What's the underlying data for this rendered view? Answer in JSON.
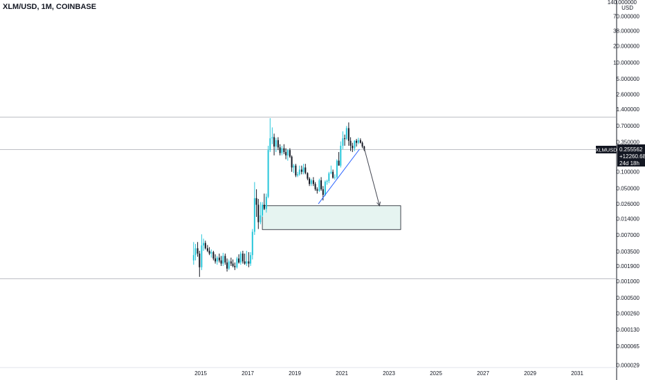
{
  "header": {
    "symbol_title": "XLM/USD, 1M, COINBASE"
  },
  "price_axis": {
    "currency": "USD",
    "top_label": "140.000000",
    "labels": [
      "70.000000",
      "38.000000",
      "20.000000",
      "10.000000",
      "5.000000",
      "2.600000",
      "1.400000",
      "0.700000",
      "0.350000",
      "0.100000",
      "0.050000",
      "0.026000",
      "0.014000",
      "0.007000",
      "0.003500",
      "0.001900",
      "0.001000",
      "0.000500",
      "0.000260",
      "0.000130",
      "0.000065",
      "0.000029"
    ]
  },
  "time_axis": {
    "labels": [
      "2015",
      "2017",
      "2019",
      "2021",
      "2023",
      "2025",
      "2027",
      "2029",
      "2031"
    ]
  },
  "price_tag": {
    "symbol": "XLMUSD",
    "price": "0.255562",
    "change": "+12260.68%",
    "countdown": "24d 18h",
    "color": "#131722"
  },
  "colors": {
    "up": "#26c6da",
    "down": "#131722",
    "trendline": "#2962ff",
    "box_fill": "#e6f4f1",
    "arrow": "#434651",
    "hline": "#9598a1"
  },
  "chart_data": {
    "type": "candlestick",
    "scale": "log",
    "interval": "1M",
    "horizontal_lines": [
      1.0,
      0.0011
    ],
    "candles": [
      {
        "t": 2014.7,
        "o": 0.0024,
        "h": 0.0052,
        "l": 0.002,
        "c": 0.003
      },
      {
        "t": 2014.78,
        "o": 0.003,
        "h": 0.0048,
        "l": 0.0024,
        "c": 0.004
      },
      {
        "t": 2014.87,
        "o": 0.004,
        "h": 0.0052,
        "l": 0.0028,
        "c": 0.0032
      },
      {
        "t": 2014.95,
        "o": 0.0032,
        "h": 0.0036,
        "l": 0.0012,
        "c": 0.0018
      },
      {
        "t": 2015.04,
        "o": 0.0018,
        "h": 0.0072,
        "l": 0.0016,
        "c": 0.0045
      },
      {
        "t": 2015.12,
        "o": 0.0045,
        "h": 0.006,
        "l": 0.0036,
        "c": 0.005
      },
      {
        "t": 2015.2,
        "o": 0.005,
        "h": 0.0055,
        "l": 0.0038,
        "c": 0.004
      },
      {
        "t": 2015.29,
        "o": 0.004,
        "h": 0.0046,
        "l": 0.0034,
        "c": 0.0036
      },
      {
        "t": 2015.37,
        "o": 0.0036,
        "h": 0.0042,
        "l": 0.003,
        "c": 0.0032
      },
      {
        "t": 2015.45,
        "o": 0.0032,
        "h": 0.0038,
        "l": 0.0027,
        "c": 0.0034
      },
      {
        "t": 2015.54,
        "o": 0.0034,
        "h": 0.0036,
        "l": 0.0024,
        "c": 0.0026
      },
      {
        "t": 2015.62,
        "o": 0.0026,
        "h": 0.0031,
        "l": 0.0021,
        "c": 0.0023
      },
      {
        "t": 2015.7,
        "o": 0.0023,
        "h": 0.0029,
        "l": 0.002,
        "c": 0.0027
      },
      {
        "t": 2015.79,
        "o": 0.0027,
        "h": 0.0032,
        "l": 0.0022,
        "c": 0.0024
      },
      {
        "t": 2015.87,
        "o": 0.0024,
        "h": 0.0029,
        "l": 0.0019,
        "c": 0.0021
      },
      {
        "t": 2015.95,
        "o": 0.0021,
        "h": 0.0033,
        "l": 0.0019,
        "c": 0.0029
      },
      {
        "t": 2016.04,
        "o": 0.0029,
        "h": 0.0032,
        "l": 0.002,
        "c": 0.0022
      },
      {
        "t": 2016.12,
        "o": 0.0022,
        "h": 0.0026,
        "l": 0.0015,
        "c": 0.0017
      },
      {
        "t": 2016.2,
        "o": 0.0017,
        "h": 0.0025,
        "l": 0.0016,
        "c": 0.0023
      },
      {
        "t": 2016.29,
        "o": 0.0023,
        "h": 0.0027,
        "l": 0.0019,
        "c": 0.0021
      },
      {
        "t": 2016.37,
        "o": 0.0021,
        "h": 0.0025,
        "l": 0.0018,
        "c": 0.0019
      },
      {
        "t": 2016.45,
        "o": 0.0019,
        "h": 0.0022,
        "l": 0.0016,
        "c": 0.0018
      },
      {
        "t": 2016.54,
        "o": 0.0018,
        "h": 0.0028,
        "l": 0.0017,
        "c": 0.0026
      },
      {
        "t": 2016.62,
        "o": 0.0026,
        "h": 0.0031,
        "l": 0.0021,
        "c": 0.0022
      },
      {
        "t": 2016.7,
        "o": 0.0022,
        "h": 0.0035,
        "l": 0.002,
        "c": 0.0032
      },
      {
        "t": 2016.79,
        "o": 0.0032,
        "h": 0.0036,
        "l": 0.0021,
        "c": 0.0023
      },
      {
        "t": 2016.87,
        "o": 0.0023,
        "h": 0.0032,
        "l": 0.002,
        "c": 0.0021
      },
      {
        "t": 2016.95,
        "o": 0.0021,
        "h": 0.0036,
        "l": 0.0019,
        "c": 0.0023
      },
      {
        "t": 2017.04,
        "o": 0.0023,
        "h": 0.0034,
        "l": 0.0018,
        "c": 0.0021
      },
      {
        "t": 2017.12,
        "o": 0.0021,
        "h": 0.0034,
        "l": 0.0019,
        "c": 0.003
      },
      {
        "t": 2017.2,
        "o": 0.003,
        "h": 0.009,
        "l": 0.0025,
        "c": 0.008
      },
      {
        "t": 2017.29,
        "o": 0.008,
        "h": 0.065,
        "l": 0.007,
        "c": 0.033
      },
      {
        "t": 2017.37,
        "o": 0.033,
        "h": 0.048,
        "l": 0.015,
        "c": 0.025
      },
      {
        "t": 2017.45,
        "o": 0.025,
        "h": 0.032,
        "l": 0.009,
        "c": 0.012
      },
      {
        "t": 2017.54,
        "o": 0.012,
        "h": 0.028,
        "l": 0.011,
        "c": 0.016
      },
      {
        "t": 2017.62,
        "o": 0.016,
        "h": 0.028,
        "l": 0.015,
        "c": 0.025
      },
      {
        "t": 2017.7,
        "o": 0.025,
        "h": 0.04,
        "l": 0.02,
        "c": 0.021
      },
      {
        "t": 2017.79,
        "o": 0.021,
        "h": 0.04,
        "l": 0.018,
        "c": 0.035
      },
      {
        "t": 2017.87,
        "o": 0.035,
        "h": 0.3,
        "l": 0.033,
        "c": 0.25
      },
      {
        "t": 2017.95,
        "o": 0.25,
        "h": 0.96,
        "l": 0.23,
        "c": 0.41
      },
      {
        "t": 2018.04,
        "o": 0.41,
        "h": 0.65,
        "l": 0.32,
        "c": 0.43
      },
      {
        "t": 2018.12,
        "o": 0.43,
        "h": 0.5,
        "l": 0.2,
        "c": 0.29
      },
      {
        "t": 2018.2,
        "o": 0.29,
        "h": 0.42,
        "l": 0.23,
        "c": 0.38
      },
      {
        "t": 2018.29,
        "o": 0.38,
        "h": 0.43,
        "l": 0.25,
        "c": 0.28
      },
      {
        "t": 2018.37,
        "o": 0.28,
        "h": 0.32,
        "l": 0.2,
        "c": 0.22
      },
      {
        "t": 2018.45,
        "o": 0.22,
        "h": 0.3,
        "l": 0.2,
        "c": 0.27
      },
      {
        "t": 2018.54,
        "o": 0.27,
        "h": 0.32,
        "l": 0.21,
        "c": 0.23
      },
      {
        "t": 2018.62,
        "o": 0.23,
        "h": 0.27,
        "l": 0.17,
        "c": 0.2
      },
      {
        "t": 2018.7,
        "o": 0.2,
        "h": 0.26,
        "l": 0.16,
        "c": 0.25
      },
      {
        "t": 2018.79,
        "o": 0.25,
        "h": 0.27,
        "l": 0.18,
        "c": 0.19
      },
      {
        "t": 2018.87,
        "o": 0.19,
        "h": 0.2,
        "l": 0.1,
        "c": 0.12
      },
      {
        "t": 2018.95,
        "o": 0.12,
        "h": 0.14,
        "l": 0.095,
        "c": 0.13
      },
      {
        "t": 2019.04,
        "o": 0.13,
        "h": 0.14,
        "l": 0.08,
        "c": 0.086
      },
      {
        "t": 2019.12,
        "o": 0.086,
        "h": 0.1,
        "l": 0.08,
        "c": 0.09
      },
      {
        "t": 2019.2,
        "o": 0.09,
        "h": 0.13,
        "l": 0.085,
        "c": 0.11
      },
      {
        "t": 2019.29,
        "o": 0.11,
        "h": 0.13,
        "l": 0.09,
        "c": 0.1
      },
      {
        "t": 2019.37,
        "o": 0.1,
        "h": 0.14,
        "l": 0.09,
        "c": 0.12
      },
      {
        "t": 2019.45,
        "o": 0.12,
        "h": 0.14,
        "l": 0.09,
        "c": 0.095
      },
      {
        "t": 2019.54,
        "o": 0.095,
        "h": 0.098,
        "l": 0.07,
        "c": 0.075
      },
      {
        "t": 2019.62,
        "o": 0.075,
        "h": 0.08,
        "l": 0.055,
        "c": 0.06
      },
      {
        "t": 2019.7,
        "o": 0.06,
        "h": 0.075,
        "l": 0.055,
        "c": 0.07
      },
      {
        "t": 2019.79,
        "o": 0.07,
        "h": 0.08,
        "l": 0.055,
        "c": 0.06
      },
      {
        "t": 2019.87,
        "o": 0.06,
        "h": 0.065,
        "l": 0.045,
        "c": 0.048
      },
      {
        "t": 2019.95,
        "o": 0.048,
        "h": 0.052,
        "l": 0.04,
        "c": 0.045
      },
      {
        "t": 2020.04,
        "o": 0.045,
        "h": 0.075,
        "l": 0.043,
        "c": 0.07
      },
      {
        "t": 2020.12,
        "o": 0.07,
        "h": 0.08,
        "l": 0.045,
        "c": 0.048
      },
      {
        "t": 2020.2,
        "o": 0.048,
        "h": 0.055,
        "l": 0.03,
        "c": 0.038
      },
      {
        "t": 2020.29,
        "o": 0.038,
        "h": 0.07,
        "l": 0.036,
        "c": 0.066
      },
      {
        "t": 2020.37,
        "o": 0.066,
        "h": 0.072,
        "l": 0.058,
        "c": 0.068
      },
      {
        "t": 2020.45,
        "o": 0.068,
        "h": 0.1,
        "l": 0.062,
        "c": 0.094
      },
      {
        "t": 2020.54,
        "o": 0.094,
        "h": 0.13,
        "l": 0.09,
        "c": 0.1
      },
      {
        "t": 2020.62,
        "o": 0.1,
        "h": 0.11,
        "l": 0.075,
        "c": 0.078
      },
      {
        "t": 2020.7,
        "o": 0.078,
        "h": 0.09,
        "l": 0.072,
        "c": 0.08
      },
      {
        "t": 2020.79,
        "o": 0.08,
        "h": 0.17,
        "l": 0.075,
        "c": 0.16
      },
      {
        "t": 2020.87,
        "o": 0.16,
        "h": 0.23,
        "l": 0.13,
        "c": 0.13
      },
      {
        "t": 2020.95,
        "o": 0.13,
        "h": 0.36,
        "l": 0.12,
        "c": 0.3
      },
      {
        "t": 2021.04,
        "o": 0.3,
        "h": 0.55,
        "l": 0.26,
        "c": 0.41
      },
      {
        "t": 2021.12,
        "o": 0.41,
        "h": 0.48,
        "l": 0.3,
        "c": 0.4
      },
      {
        "t": 2021.2,
        "o": 0.4,
        "h": 0.69,
        "l": 0.38,
        "c": 0.63
      },
      {
        "t": 2021.29,
        "o": 0.63,
        "h": 0.8,
        "l": 0.3,
        "c": 0.37
      },
      {
        "t": 2021.37,
        "o": 0.37,
        "h": 0.43,
        "l": 0.24,
        "c": 0.3
      },
      {
        "t": 2021.45,
        "o": 0.3,
        "h": 0.34,
        "l": 0.23,
        "c": 0.27
      },
      {
        "t": 2021.54,
        "o": 0.27,
        "h": 0.38,
        "l": 0.24,
        "c": 0.37
      },
      {
        "t": 2021.62,
        "o": 0.37,
        "h": 0.4,
        "l": 0.29,
        "c": 0.34
      },
      {
        "t": 2021.7,
        "o": 0.34,
        "h": 0.42,
        "l": 0.32,
        "c": 0.38
      },
      {
        "t": 2021.79,
        "o": 0.38,
        "h": 0.41,
        "l": 0.33,
        "c": 0.34
      },
      {
        "t": 2021.87,
        "o": 0.34,
        "h": 0.36,
        "l": 0.27,
        "c": 0.29
      },
      {
        "t": 2021.95,
        "o": 0.29,
        "h": 0.3,
        "l": 0.24,
        "c": 0.2556
      }
    ],
    "trendline": [
      {
        "t": 2020.0,
        "v": 0.026
      },
      {
        "t": 2021.75,
        "v": 0.26
      }
    ],
    "arrow": [
      {
        "t": 2021.95,
        "v": 0.27
      },
      {
        "t": 2022.6,
        "v": 0.024
      }
    ],
    "zone": {
      "t1": 2017.62,
      "t2": 2023.5,
      "v_top": 0.024,
      "v_bottom": 0.0088
    }
  }
}
